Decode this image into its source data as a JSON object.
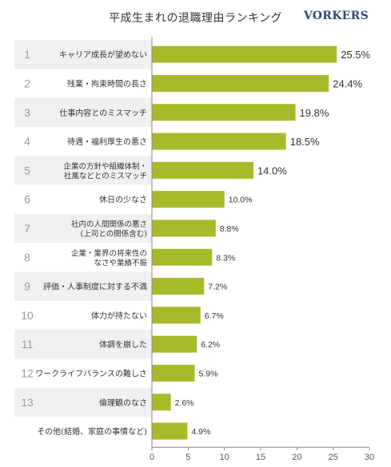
{
  "header": {
    "title": "平成生まれの退職理由ランキング",
    "logo": "VORKERS"
  },
  "colors": {
    "bar": "#a8b92a",
    "stripe": "#f0f0f0",
    "rank": "#9a9a9a",
    "text": "#333333",
    "axis": "#555555",
    "logo": "#2f4a72"
  },
  "chart_data": {
    "type": "bar",
    "orientation": "horizontal",
    "title": "平成生まれの退職理由ランキング",
    "ranks": [
      "1",
      "2",
      "3",
      "4",
      "5",
      "6",
      "7",
      "8",
      "9",
      "10",
      "11",
      "12",
      "13",
      ""
    ],
    "categories": [
      [
        "キャリア成長が望めない"
      ],
      [
        "残業・拘束時間の長さ"
      ],
      [
        "仕事内容とのミスマッチ"
      ],
      [
        "待遇・福利厚生の悪さ"
      ],
      [
        "企業の方針や組織体制・",
        "社風などとのミスマッチ"
      ],
      [
        "休日の少なさ"
      ],
      [
        "社内の人間関係の悪さ",
        "(上司との関係含む)"
      ],
      [
        "企業・業界の将来性の",
        "なさや業績不振"
      ],
      [
        "評価・人事制度に対する不満"
      ],
      [
        "体力が持たない"
      ],
      [
        "体調を崩した"
      ],
      [
        "ワークライフバランスの難しさ"
      ],
      [
        "倫理観のなさ"
      ],
      [
        "その他(結婚、家庭の事情など)"
      ]
    ],
    "values": [
      25.5,
      24.4,
      19.8,
      18.5,
      14.0,
      10.0,
      8.8,
      8.3,
      7.2,
      6.7,
      6.2,
      5.9,
      2.6,
      4.9
    ],
    "value_labels": [
      "25.5%",
      "24.4%",
      "19.8%",
      "18.5%",
      "14.0%",
      "10.0%",
      "8.8%",
      "8.3%",
      "7.2%",
      "6.7%",
      "6.2%",
      "5.9%",
      "2.6%",
      "4.9%"
    ],
    "xlim": [
      0,
      30
    ],
    "xticks": [
      0,
      5,
      10,
      15,
      20,
      25,
      30
    ],
    "grid": false
  }
}
